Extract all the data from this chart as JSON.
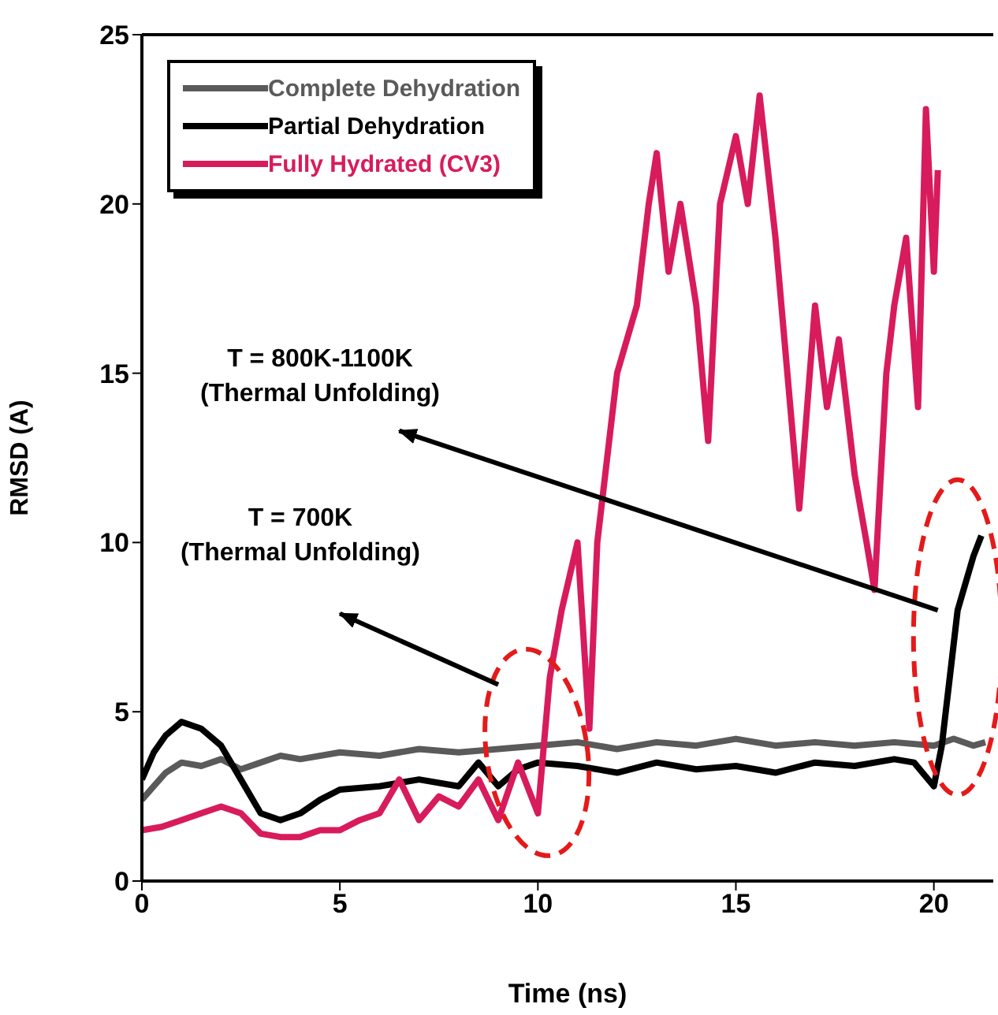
{
  "chart_data": {
    "type": "line",
    "xlabel": "Time (ns)",
    "ylabel": "RMSD (A)",
    "xlim": [
      0,
      21.5
    ],
    "ylim": [
      0,
      25
    ],
    "xticks": [
      0,
      5,
      10,
      15,
      20
    ],
    "yticks": [
      0,
      5,
      10,
      15,
      20,
      25
    ],
    "grid": false,
    "legend": "top left",
    "marker": "none",
    "line_style": "solid",
    "annotations": [
      "T = 800K-1100K\n(Thermal Unfolding)",
      "T = 700K\n(Thermal Unfolding)"
    ],
    "series": [
      {
        "name": "Complete Dehydration",
        "color": "#5a5a5a",
        "x": [
          0,
          0.3,
          0.6,
          1,
          1.5,
          2,
          2.5,
          3,
          3.5,
          4,
          5,
          6,
          7,
          8,
          9,
          10,
          11,
          12,
          13,
          14,
          15,
          16,
          17,
          18,
          19,
          20,
          20.5,
          21,
          21.3
        ],
        "values": [
          2.4,
          2.8,
          3.2,
          3.5,
          3.4,
          3.6,
          3.3,
          3.5,
          3.7,
          3.6,
          3.8,
          3.7,
          3.9,
          3.8,
          3.9,
          4.0,
          4.1,
          3.9,
          4.1,
          4.0,
          4.2,
          4.0,
          4.1,
          4.0,
          4.1,
          4.0,
          4.2,
          4.0,
          4.1
        ]
      },
      {
        "name": "Partial Dehydration",
        "color": "#000000",
        "x": [
          0,
          0.3,
          0.6,
          1,
          1.5,
          2,
          2.5,
          3,
          3.5,
          4,
          4.5,
          5,
          6,
          7,
          8,
          8.5,
          9,
          9.5,
          10,
          11,
          12,
          13,
          14,
          15,
          16,
          17,
          18,
          19,
          19.5,
          20,
          20.2,
          20.4,
          20.6,
          20.8,
          21,
          21.2
        ],
        "values": [
          3.0,
          3.8,
          4.3,
          4.7,
          4.5,
          4.0,
          3.0,
          2.0,
          1.8,
          2.0,
          2.4,
          2.7,
          2.8,
          3.0,
          2.8,
          3.5,
          2.8,
          3.3,
          3.5,
          3.4,
          3.2,
          3.5,
          3.3,
          3.4,
          3.2,
          3.5,
          3.4,
          3.6,
          3.5,
          2.8,
          4.0,
          6.0,
          8.0,
          8.8,
          9.6,
          10.2
        ]
      },
      {
        "name": "Fully Hydrated (CV3)",
        "color": "#d81b5c",
        "x": [
          0,
          0.5,
          1,
          1.5,
          2,
          2.5,
          3,
          3.5,
          4,
          4.5,
          5,
          5.5,
          6,
          6.5,
          7,
          7.5,
          8,
          8.5,
          9,
          9.5,
          10,
          10.3,
          10.6,
          11,
          11.3,
          11.5,
          12,
          12.5,
          12.8,
          13,
          13.3,
          13.6,
          14,
          14.3,
          14.6,
          15,
          15.3,
          15.6,
          16,
          16.3,
          16.6,
          17,
          17.3,
          17.6,
          18,
          18.3,
          18.5,
          18.8,
          19,
          19.3,
          19.6,
          19.8,
          20,
          20.1
        ],
        "values": [
          1.5,
          1.6,
          1.8,
          2.0,
          2.2,
          2.0,
          1.4,
          1.3,
          1.3,
          1.5,
          1.5,
          1.8,
          2.0,
          3.0,
          1.8,
          2.5,
          2.2,
          3.0,
          1.8,
          3.5,
          2.0,
          6.0,
          8.0,
          10.0,
          4.5,
          10.0,
          15.0,
          17.0,
          20.0,
          21.5,
          18.0,
          20.0,
          17.0,
          13.0,
          20.0,
          22.0,
          20.0,
          23.2,
          19.0,
          15.0,
          11.0,
          17.0,
          14.0,
          16.0,
          12.0,
          10.0,
          8.6,
          15.0,
          17.0,
          19.0,
          14.0,
          22.8,
          18.0,
          21.0
        ]
      }
    ]
  }
}
